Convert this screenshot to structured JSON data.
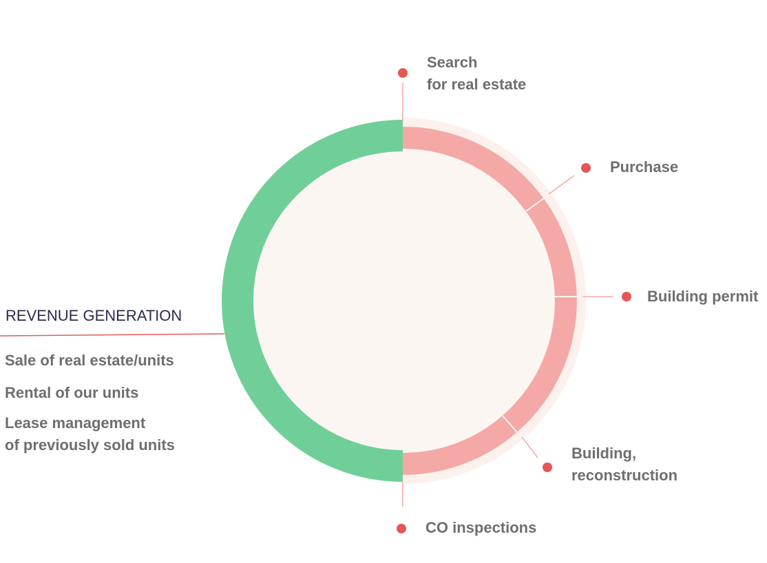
{
  "revenue": {
    "title": "REVENUE GENERATION",
    "items": [
      [
        "Sale of real estate/units"
      ],
      [
        "Rental of our units"
      ],
      [
        "Lease management",
        "of previously sold units"
      ]
    ]
  },
  "steps": [
    {
      "label": [
        "Search",
        "for real estate"
      ]
    },
    {
      "label": [
        "Purchase"
      ]
    },
    {
      "label": [
        "Building permit"
      ]
    },
    {
      "label": [
        "Building,",
        "reconstruction"
      ]
    },
    {
      "label": [
        "CO inspections"
      ]
    }
  ]
}
